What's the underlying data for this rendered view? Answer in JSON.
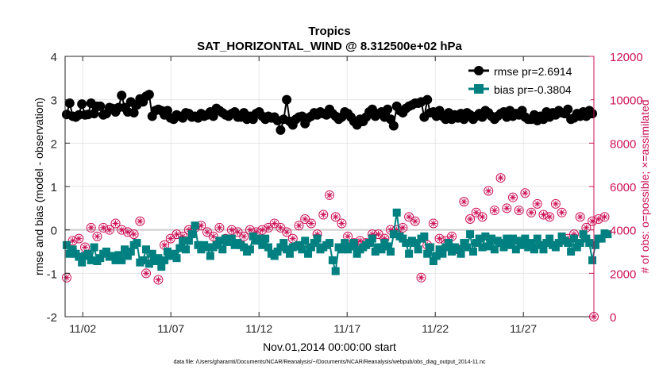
{
  "chart_data": {
    "type": "line",
    "title": "Tropics",
    "subtitle": "SAT_HORIZONTAL_WIND @ 8.312500e+02 hPa",
    "xlabel": "Nov.01,2014 00:00:00 start",
    "ylabel_left": "rmse and bias (model - observation)",
    "ylabel_right": "# of obs: o=possible; ×=assimilated",
    "footer": "data file: /Users/gharamti/Documents/NCAR/Reanalysis/~/Documents/NCAR/Reanalysis/webpub/obs_diag_output_2014-11.nc",
    "xlim": [
      0.5,
      30.5
    ],
    "ylim_left": [
      -2,
      4
    ],
    "ylim_right": [
      0,
      12000
    ],
    "x_ticks": [
      1.5,
      6.5,
      11.5,
      16.5,
      21.5,
      26.5
    ],
    "x_tick_labels": [
      "11/02",
      "11/07",
      "11/12",
      "11/17",
      "11/22",
      "11/27"
    ],
    "y_ticks_left": [
      -2,
      -1,
      0,
      1,
      2,
      3,
      4
    ],
    "y_ticks_right": [
      0,
      2000,
      4000,
      6000,
      8000,
      10000,
      12000
    ],
    "grid": true,
    "legend_position": "top-right",
    "colors": {
      "rmse": "#000000",
      "bias": "#008080",
      "obs": "#cc1157",
      "zero_line": "#cccccc"
    },
    "series": [
      {
        "name": "rmse pr=2.6914",
        "axis": "left",
        "marker": "circle",
        "values": [
          2.66,
          2.92,
          2.62,
          2.6,
          2.65,
          2.9,
          2.65,
          2.66,
          2.92,
          2.68,
          2.85,
          2.85,
          2.65,
          2.68,
          2.82,
          2.8,
          2.72,
          2.82,
          3.1,
          2.82,
          2.72,
          2.95,
          2.7,
          2.88,
          3.02,
          2.95,
          3.08,
          3.12,
          2.62,
          2.75,
          2.78,
          2.75,
          2.65,
          2.75,
          2.58,
          2.55,
          2.65,
          2.62,
          2.58,
          2.7,
          2.68,
          2.6,
          2.62,
          2.58,
          2.68,
          2.62,
          2.65,
          2.72,
          2.62,
          2.8,
          2.75,
          2.7,
          2.65,
          2.62,
          2.68,
          2.72,
          2.6,
          2.6,
          2.7,
          2.55,
          2.62,
          2.55,
          2.68,
          2.72,
          2.62,
          2.55,
          2.62,
          2.58,
          2.6,
          2.52,
          2.3,
          2.55,
          3.0,
          2.5,
          2.42,
          2.55,
          2.6,
          2.62,
          2.45,
          2.58,
          2.62,
          2.7,
          2.65,
          2.72,
          2.68,
          2.65,
          2.78,
          2.68,
          2.62,
          2.55,
          2.6,
          2.72,
          2.68,
          2.6,
          2.5,
          2.42,
          2.55,
          2.5,
          2.6,
          2.72,
          2.78,
          2.62,
          2.68,
          2.72,
          2.6,
          2.78,
          2.55,
          2.4,
          2.85,
          2.75,
          2.7,
          2.8,
          2.85,
          2.88,
          2.92,
          2.92,
          2.95,
          2.6,
          3.0,
          2.7,
          2.72,
          2.62,
          2.75,
          2.62,
          2.55,
          2.7,
          2.55,
          2.65,
          2.58,
          2.68,
          2.55,
          2.7,
          2.65,
          2.55,
          2.62,
          2.68,
          2.6,
          2.75,
          2.7,
          2.62,
          2.55,
          2.62,
          2.68,
          2.72,
          2.6,
          2.75,
          2.62,
          2.68,
          2.65,
          2.75,
          2.6,
          2.55,
          2.55,
          2.65,
          2.52,
          2.62,
          2.55,
          2.72,
          2.6,
          2.7,
          2.65,
          2.75,
          2.7,
          2.68,
          2.78,
          2.55,
          2.58,
          2.68,
          2.62,
          2.72,
          2.62,
          2.75,
          2.68
        ]
      },
      {
        "name": "bias pr=-0.3804",
        "axis": "left",
        "marker": "square",
        "values": [
          -0.35,
          -0.55,
          -0.45,
          -0.55,
          -0.62,
          -0.75,
          -0.6,
          -0.55,
          -0.7,
          -0.4,
          -0.72,
          -0.65,
          -0.55,
          -0.5,
          -0.62,
          -0.6,
          -0.7,
          -0.58,
          -0.7,
          -0.45,
          -0.6,
          -0.5,
          -0.35,
          -0.3,
          -0.75,
          -0.7,
          -0.45,
          -0.78,
          -0.55,
          -0.72,
          -0.65,
          -0.85,
          -0.7,
          -0.5,
          -0.6,
          -0.55,
          -0.65,
          -0.42,
          -0.25,
          -0.45,
          -0.25,
          -0.1,
          0.1,
          -0.35,
          -0.45,
          -0.35,
          -0.4,
          -0.6,
          -0.4,
          -0.35,
          -0.25,
          -0.45,
          -0.2,
          -0.28,
          -0.2,
          -0.35,
          -0.3,
          -0.35,
          -0.4,
          -0.5,
          -0.45,
          -0.15,
          -0.25,
          -0.2,
          -0.35,
          -0.2,
          -0.4,
          -0.55,
          -0.6,
          -0.5,
          -0.4,
          -0.3,
          -0.45,
          -0.55,
          -0.4,
          -0.38,
          -0.35,
          -0.45,
          -0.25,
          -0.55,
          -0.4,
          -0.3,
          -0.2,
          -0.45,
          -0.4,
          -0.35,
          -0.3,
          -0.7,
          -0.95,
          -0.4,
          -0.45,
          -0.3,
          -0.45,
          -0.38,
          -0.3,
          -0.55,
          -0.45,
          -0.4,
          -0.35,
          -0.3,
          -0.2,
          -0.5,
          -0.4,
          -0.45,
          -0.3,
          -0.38,
          -0.5,
          -0.1,
          0.4,
          -0.15,
          -0.2,
          -0.3,
          -0.55,
          -0.25,
          -0.3,
          -0.45,
          -0.2,
          -0.15,
          -0.55,
          -0.4,
          -0.72,
          -0.6,
          -0.45,
          -0.55,
          -0.4,
          -0.3,
          -0.5,
          -0.4,
          -0.45,
          -0.55,
          -0.3,
          -0.4,
          -0.1,
          -0.5,
          -0.3,
          -0.2,
          -0.4,
          -0.15,
          -0.38,
          -0.2,
          -0.45,
          -0.25,
          -0.3,
          -0.4,
          -0.2,
          -0.35,
          -0.2,
          -0.45,
          -0.25,
          -0.35,
          -0.2,
          -0.4,
          -0.3,
          -0.45,
          -0.2,
          -0.35,
          -0.45,
          -0.3,
          -0.2,
          -0.35,
          -0.4,
          -0.3,
          -0.15,
          -0.25,
          -0.3,
          -0.5,
          -0.2,
          -0.4,
          -0.3,
          -0.1,
          -0.2,
          -0.3,
          -0.7,
          -0.35,
          -0.2,
          -0.2,
          -0.08,
          -0.1
        ]
      },
      {
        "name": "# of obs possible",
        "axis": "right",
        "marker": "circle-open",
        "values": [
          1800,
          3600,
          3500,
          3300,
          3600,
          3000,
          3200,
          4200,
          4100,
          3800,
          3700,
          3900,
          4100,
          3800,
          4000,
          4200,
          4300,
          4100,
          4000,
          4400,
          3900,
          4100,
          3800,
          4200,
          4400,
          4200,
          2000,
          2300,
          2600,
          2200,
          1700,
          3100,
          3300,
          3500,
          3600,
          3400,
          3800,
          3900,
          3700,
          3400,
          4000,
          4000,
          4100,
          4300,
          4200,
          4200,
          3900,
          3600,
          3700,
          4200,
          4100,
          3800,
          3600,
          4400,
          4000,
          4300,
          3900,
          4000,
          3700,
          4500,
          4000,
          3800,
          3900,
          4200,
          4000,
          3900,
          4100,
          3800,
          4300,
          4200,
          4100,
          4000,
          3900,
          3600,
          3600,
          3800,
          4200,
          3800,
          4500,
          4200,
          4300,
          4000,
          3800,
          4900,
          4700,
          4200,
          5600,
          5100,
          4600,
          4900,
          4300,
          4100,
          3700,
          3400,
          3400,
          4200,
          3500,
          3200,
          3400,
          4000,
          3800,
          4100,
          3800,
          3600,
          3600,
          3300,
          4000,
          3500,
          4000,
          3800,
          4100,
          4200,
          4600,
          3200,
          4400,
          3900,
          1800,
          4000,
          3300,
          3700,
          4300,
          4000,
          3600,
          3500,
          3500,
          3200,
          3700,
          3300,
          3100,
          5700,
          5300,
          4700,
          4500,
          5600,
          4800,
          4900,
          4600,
          5300,
          5800,
          5400,
          4900,
          6100,
          6400,
          5300,
          5000,
          5200,
          5500,
          4600,
          4900,
          5800,
          5700,
          5500,
          4800,
          4800,
          5200,
          5000,
          4700,
          5200,
          4600,
          4500,
          5200,
          4400,
          4800,
          4300,
          3600,
          4100,
          3800,
          4200,
          4600,
          4000,
          4100,
          2300,
          4400,
          4600,
          4500,
          4700,
          4600
        ]
      },
      {
        "name": "# of obs assimilated",
        "axis": "right",
        "marker": "star",
        "values": [
          1800,
          3600,
          3500,
          3300,
          3600,
          3000,
          3200,
          4200,
          4100,
          3800,
          3700,
          3900,
          4100,
          3800,
          4000,
          4200,
          4300,
          4100,
          4000,
          4400,
          3900,
          4100,
          3800,
          4200,
          4400,
          4200,
          2000,
          2300,
          2600,
          2200,
          1700,
          3100,
          3300,
          3500,
          3600,
          3400,
          3800,
          3900,
          3700,
          3400,
          4000,
          4000,
          4100,
          4300,
          4200,
          4200,
          3900,
          3600,
          3700,
          4200,
          4100,
          3800,
          3600,
          4400,
          4000,
          4300,
          3900,
          4000,
          3700,
          4500,
          4000,
          3800,
          3900,
          4200,
          4000,
          3900,
          4100,
          3800,
          4300,
          4200,
          4100,
          4000,
          3900,
          3600,
          3600,
          3800,
          4200,
          3800,
          4500,
          4200,
          4300,
          4000,
          3800,
          4900,
          4700,
          4200,
          5600,
          5100,
          4600,
          4900,
          4300,
          4100,
          3700,
          3400,
          3400,
          4200,
          3500,
          3200,
          3400,
          4000,
          3800,
          4100,
          3800,
          3600,
          3600,
          3300,
          4000,
          3500,
          4000,
          3800,
          4100,
          4200,
          4600,
          3200,
          4400,
          3900,
          1800,
          4000,
          3300,
          3700,
          4300,
          4000,
          3600,
          3500,
          3500,
          3200,
          3700,
          3300,
          3100,
          5700,
          5300,
          4700,
          4500,
          5600,
          4800,
          4900,
          4600,
          5300,
          5800,
          5400,
          4900,
          6100,
          6400,
          5300,
          5000,
          5200,
          5500,
          4600,
          4900,
          5800,
          5700,
          5500,
          4800,
          4800,
          5200,
          5000,
          4700,
          5200,
          4600,
          4500,
          5200,
          4400,
          4800,
          4300,
          3600,
          4100,
          3800,
          4200,
          4600,
          4000,
          4100,
          2300,
          4400,
          4600,
          4500,
          4700,
          4600
        ]
      }
    ],
    "extra_obs_marker": {
      "x": 30.5,
      "y": 0
    }
  }
}
